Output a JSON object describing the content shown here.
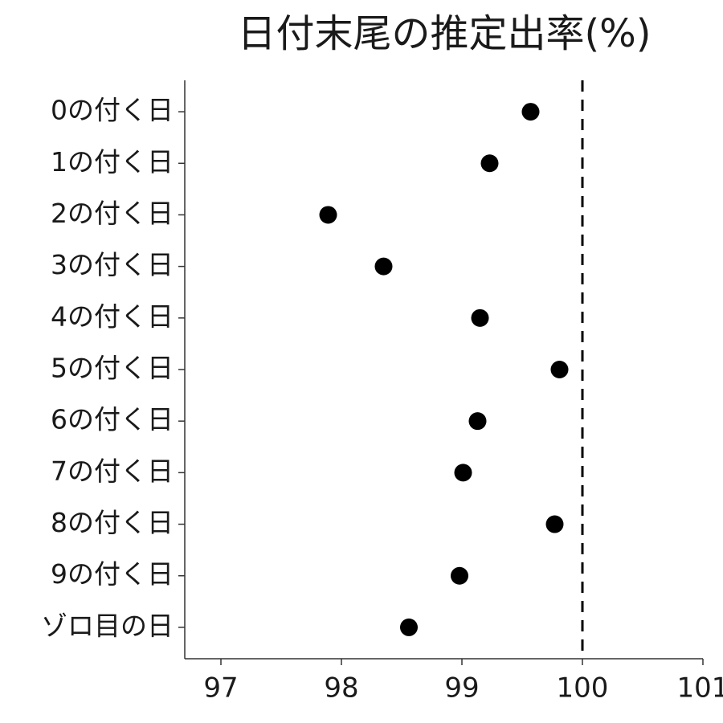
{
  "chart_data": {
    "type": "dot",
    "title": "日付末尾の推定出率(%)",
    "categories": [
      "0の付く日",
      "1の付く日",
      "2の付く日",
      "3の付く日",
      "4の付く日",
      "5の付く日",
      "6の付く日",
      "7の付く日",
      "8の付く日",
      "9の付く日",
      "ゾロ目の日"
    ],
    "values": [
      99.57,
      99.23,
      97.89,
      98.35,
      99.15,
      99.81,
      99.13,
      99.01,
      99.77,
      98.98,
      98.56
    ],
    "color": "#000000",
    "xlim": [
      96.7,
      101
    ],
    "xticks": [
      97,
      98,
      99,
      100,
      101
    ],
    "reference_line": 100
  }
}
